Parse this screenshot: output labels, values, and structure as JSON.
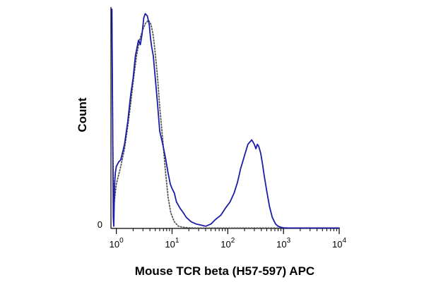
{
  "chart_data": {
    "type": "line",
    "title": "",
    "xlabel": "Mouse TCR beta (H57-597) APC",
    "ylabel": "Count",
    "x_scale": "log",
    "xlim": [
      0.8,
      10000
    ],
    "ylim": [
      0,
      100
    ],
    "grid": false,
    "legend": "none",
    "x_ticks": [
      {
        "value": 1,
        "base": "10",
        "exp": "0"
      },
      {
        "value": 10,
        "base": "10",
        "exp": "1"
      },
      {
        "value": 100,
        "base": "10",
        "exp": "2"
      },
      {
        "value": 1000,
        "base": "10",
        "exp": "3"
      },
      {
        "value": 10000,
        "base": "10",
        "exp": "4"
      }
    ],
    "y_ticks": [
      {
        "value": 0,
        "label": "0"
      }
    ],
    "series": [
      {
        "style": "solid",
        "color": "#1c1ca8",
        "x": [
          0.8,
          0.83,
          0.86,
          0.88,
          0.9,
          0.93,
          0.96,
          1.0,
          1.1,
          1.2,
          1.4,
          1.6,
          1.8,
          2.0,
          2.2,
          2.5,
          2.7,
          2.9,
          3.1,
          3.3,
          3.6,
          3.9,
          4.1,
          4.3,
          4.6,
          5.0,
          5.5,
          6.0,
          6.8,
          7.6,
          8.5,
          9.3,
          10,
          11,
          12,
          14,
          16,
          18,
          22,
          27,
          33,
          40,
          50,
          60,
          75,
          90,
          110,
          130,
          150,
          170,
          200,
          230,
          270,
          300,
          320,
          340,
          360,
          390,
          420,
          450,
          500,
          560,
          630,
          720,
          800,
          900,
          1000,
          1200,
          1500,
          2000,
          3000,
          5000,
          10000
        ],
        "y": [
          99,
          99,
          45,
          5,
          1,
          20,
          25,
          28,
          30,
          31,
          38,
          48,
          60,
          68,
          78,
          85,
          83,
          88,
          95,
          97,
          96,
          92,
          86,
          82,
          78,
          68,
          56,
          44,
          38,
          32,
          25,
          20,
          18,
          16,
          12,
          9,
          7,
          5,
          3,
          2,
          1.5,
          1,
          2,
          4,
          6,
          9,
          12,
          16,
          21,
          27,
          33,
          38,
          40,
          38,
          36,
          38,
          37,
          34,
          29,
          24,
          17,
          10,
          5,
          2,
          1,
          0.5,
          0.3,
          0.2,
          0.2,
          0.2,
          0.2,
          0.2,
          0.2
        ]
      },
      {
        "style": "dotted",
        "color": "#555555",
        "x": [
          0.8,
          0.83,
          0.86,
          0.9,
          1.0,
          1.2,
          1.4,
          1.6,
          1.8,
          2.0,
          2.3,
          2.6,
          3.0,
          3.4,
          3.8,
          4.2,
          4.6,
          5.0,
          5.5,
          6.0,
          6.8,
          7.6,
          8.5,
          9.5,
          11,
          13,
          16,
          20,
          30,
          50,
          100,
          1000,
          10000
        ],
        "y": [
          99,
          99,
          40,
          10,
          20,
          28,
          36,
          46,
          56,
          66,
          78,
          85,
          90,
          93,
          94,
          92,
          87,
          79,
          68,
          55,
          40,
          26,
          14,
          7,
          3,
          1,
          0.5,
          0.3,
          0.2,
          0.2,
          0.2,
          0.2,
          0.2
        ]
      }
    ]
  }
}
